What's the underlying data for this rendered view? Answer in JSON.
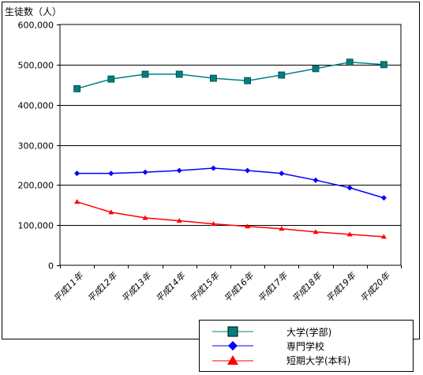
{
  "chart_data": {
    "type": "line",
    "ylabel": "生徒数（人）",
    "categories": [
      "平成11年",
      "平成12年",
      "平成13年",
      "平成14年",
      "平成15年",
      "平成16年",
      "平成17年",
      "平成18年",
      "平成19年",
      "平成20年"
    ],
    "ylim": [
      0,
      600000
    ],
    "yticks": [
      "0",
      "100,000",
      "200,000",
      "300,000",
      "400,000",
      "500,000",
      "600,000"
    ],
    "grid": true,
    "legend_position": "bottom-right",
    "series": [
      {
        "name": "大学(学部)",
        "color": "#008080",
        "marker": "square",
        "values": [
          440000,
          464000,
          476000,
          476000,
          466000,
          460000,
          474000,
          490000,
          506000,
          500000
        ]
      },
      {
        "name": "専門学校",
        "color": "#0000ff",
        "marker": "diamond",
        "values": [
          229000,
          229000,
          232000,
          236000,
          242000,
          236000,
          229000,
          212000,
          193000,
          168000
        ]
      },
      {
        "name": "短期大学(本科)",
        "color": "#ff0000",
        "marker": "triangle",
        "values": [
          158000,
          132000,
          118000,
          111000,
          103000,
          97000,
          91000,
          83000,
          77000,
          71000
        ]
      }
    ]
  }
}
